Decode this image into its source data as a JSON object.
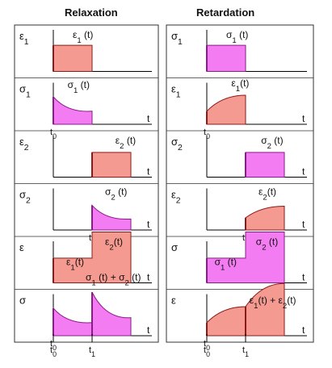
{
  "columns": [
    {
      "title": "Relaxation",
      "panels": [
        {
          "axis": [
            "ε",
            "1"
          ],
          "ticks": [],
          "t_label": "",
          "shapes": [
            {
              "kind": "rect",
              "from": 0,
              "to": 3,
              "level": 0.9,
              "fill": "red"
            }
          ],
          "labels": [
            {
              "parts": [
                [
                  "ε",
                  "1"
                ],
                [
                  " (t)",
                  ""
                ]
              ],
              "at": [
                1.5,
                1.1
              ]
            }
          ]
        },
        {
          "axis": [
            "σ",
            "1"
          ],
          "ticks": [
            [
              "t",
              "0"
            ]
          ],
          "t_label": "t",
          "shapes": [
            {
              "kind": "decay",
              "from": 0,
              "to": 3,
              "start": 0.95,
              "end": 0.45,
              "fill": "magenta"
            }
          ],
          "labels": [
            {
              "parts": [
                [
                  "σ",
                  "1"
                ],
                [
                  " (t)",
                  ""
                ]
              ],
              "at": [
                1.1,
                1.2
              ]
            }
          ]
        },
        {
          "axis": [
            "ε",
            "2"
          ],
          "ticks": [],
          "t_label": "t",
          "shapes": [
            {
              "kind": "rect",
              "from": 3,
              "to": 6,
              "level": 0.85,
              "fill": "red"
            }
          ],
          "labels": [
            {
              "parts": [
                [
                  "ε",
                  "2"
                ],
                [
                  " (t)",
                  ""
                ]
              ],
              "at": [
                4.8,
                1.1
              ]
            }
          ]
        },
        {
          "axis": [
            "σ",
            "2"
          ],
          "ticks": [
            [
              "t",
              "1"
            ]
          ],
          "t_label": "t",
          "shapes": [
            {
              "kind": "decay",
              "from": 3,
              "to": 6,
              "start": 0.85,
              "end": 0.38,
              "fill": "magenta"
            }
          ],
          "labels": [
            {
              "parts": [
                [
                  "σ",
                  "2"
                ],
                [
                  " (t)",
                  ""
                ]
              ],
              "at": [
                4.0,
                1.15
              ]
            }
          ]
        },
        {
          "axis": [
            "ε",
            ""
          ],
          "ticks": [],
          "t_label": "t",
          "shapes": [
            {
              "kind": "step",
              "from": 0,
              "mid": 3,
              "to": 6,
              "level1": 0.85,
              "level2": 1.75,
              "fill": "red"
            }
          ],
          "labels": [
            {
              "parts": [
                [
                  "ε",
                  "1"
                ],
                [
                  "(t)",
                  ""
                ]
              ],
              "at": [
                1.0,
                0.55
              ]
            },
            {
              "parts": [
                [
                  "ε",
                  "2"
                ],
                [
                  "(t)",
                  ""
                ]
              ],
              "at": [
                4.0,
                1.25
              ]
            }
          ]
        },
        {
          "axis": [
            "σ",
            ""
          ],
          "ticks": [
            [
              "t",
              "0"
            ]
          ],
          "t_label": "t",
          "shapes": [
            {
              "kind": "decay",
              "from": 0,
              "to": 3,
              "start": 0.95,
              "end": 0.45,
              "fill": "magenta"
            },
            {
              "kind": "decay2",
              "from": 3,
              "to": 6,
              "start": 1.5,
              "end": 0.62,
              "fill": "magenta"
            }
          ],
          "labels": [
            {
              "parts": [
                [
                  "σ",
                  "1"
                ],
                [
                  " (t) + ",
                  ""
                ],
                [
                  "σ",
                  "2"
                ],
                [
                  " (t)",
                  ""
                ]
              ],
              "at": [
                2.5,
                1.85
              ]
            }
          ]
        }
      ],
      "bottom_ticks": [
        [
          "t",
          "0"
        ],
        [
          "t",
          "1"
        ]
      ]
    },
    {
      "title": "Retardation",
      "panels": [
        {
          "axis": [
            "σ",
            "1"
          ],
          "ticks": [],
          "t_label": "",
          "shapes": [
            {
              "kind": "rect",
              "from": 0,
              "to": 3,
              "level": 0.9,
              "fill": "magenta"
            }
          ],
          "labels": [
            {
              "parts": [
                [
                  "σ",
                  "1"
                ],
                [
                  " (t)",
                  ""
                ]
              ],
              "at": [
                1.5,
                1.1
              ]
            }
          ]
        },
        {
          "axis": [
            "ε",
            "1"
          ],
          "ticks": [
            [
              "t",
              "0"
            ]
          ],
          "t_label": "t",
          "shapes": [
            {
              "kind": "creep",
              "from": 0,
              "to": 3,
              "start": 0.45,
              "end": 1.0,
              "fill": "red"
            }
          ],
          "labels": [
            {
              "parts": [
                [
                  "ε",
                  "1"
                ],
                [
                  "(t)",
                  ""
                ]
              ],
              "at": [
                1.9,
                1.25
              ]
            }
          ]
        },
        {
          "axis": [
            "σ",
            "2"
          ],
          "ticks": [],
          "t_label": "t",
          "shapes": [
            {
              "kind": "rect",
              "from": 3,
              "to": 6,
              "level": 0.85,
              "fill": "magenta"
            }
          ],
          "labels": [
            {
              "parts": [
                [
                  "σ",
                  "2"
                ],
                [
                  " (t)",
                  ""
                ]
              ],
              "at": [
                4.2,
                1.1
              ]
            }
          ]
        },
        {
          "axis": [
            "ε",
            "2"
          ],
          "ticks": [
            [
              "t",
              "1"
            ]
          ],
          "t_label": "t",
          "shapes": [
            {
              "kind": "creep",
              "from": 3,
              "to": 6,
              "start": 0.42,
              "end": 0.82,
              "fill": "red"
            }
          ],
          "labels": [
            {
              "parts": [
                [
                  "ε",
                  "2"
                ],
                [
                  "(t)",
                  ""
                ]
              ],
              "at": [
                4.0,
                1.15
              ]
            }
          ]
        },
        {
          "axis": [
            "σ",
            ""
          ],
          "ticks": [],
          "t_label": "t",
          "shapes": [
            {
              "kind": "step",
              "from": 0,
              "mid": 3,
              "to": 6,
              "level1": 0.85,
              "level2": 1.75,
              "fill": "magenta"
            }
          ],
          "labels": [
            {
              "parts": [
                [
                  "σ",
                  "1"
                ],
                [
                  " (t)",
                  ""
                ]
              ],
              "at": [
                0.6,
                0.55
              ]
            },
            {
              "parts": [
                [
                  "σ",
                  "2"
                ],
                [
                  " (t)",
                  ""
                ]
              ],
              "at": [
                3.8,
                1.25
              ]
            }
          ]
        },
        {
          "axis": [
            "ε",
            ""
          ],
          "ticks": [
            [
              "t",
              "0"
            ]
          ],
          "t_label": "t",
          "shapes": [
            {
              "kind": "creep",
              "from": 0,
              "to": 3,
              "start": 0.45,
              "end": 1.0,
              "fill": "red"
            },
            {
              "kind": "creep",
              "from": 3,
              "to": 6,
              "start": 1.0,
              "end": 1.8,
              "fill": "red"
            }
          ],
          "labels": [
            {
              "parts": [
                [
                  "ε",
                  "1"
                ],
                [
                  "(t) + ",
                  ""
                ],
                [
                  "ε",
                  "2"
                ],
                [
                  "(t)",
                  ""
                ]
              ],
              "at": [
                3.3,
                1.05
              ]
            }
          ]
        }
      ],
      "bottom_ticks": [
        [
          "t",
          "0"
        ],
        [
          "t",
          "1"
        ]
      ]
    }
  ],
  "colors": {
    "red_fill": "#f59a90",
    "magenta_fill": "#f47cf2",
    "red_edge": "#8b1a1a",
    "magenta_edge": "#8b1a8b",
    "frame": "#333333"
  }
}
